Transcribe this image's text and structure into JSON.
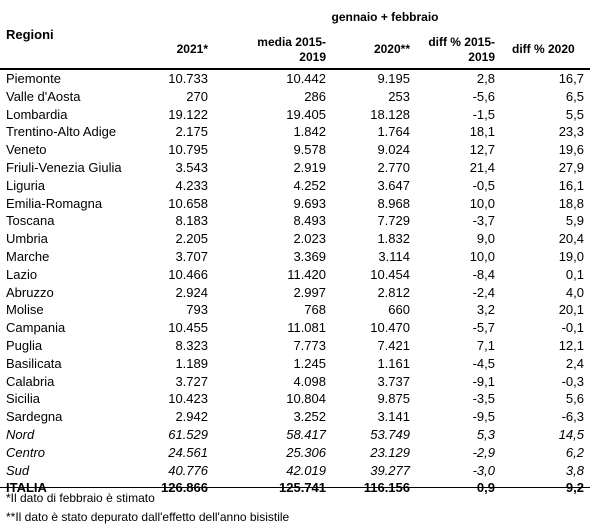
{
  "header": {
    "group_label": "gennaio + febbraio",
    "regioni_label": "Regioni",
    "columns": [
      {
        "line1": "2021*",
        "line2": ""
      },
      {
        "line1": "media 2015-",
        "line2": "2019"
      },
      {
        "line1": "2020**",
        "line2": ""
      },
      {
        "line1": "diff % 2015-",
        "line2": "2019"
      },
      {
        "line1": "diff % 2020",
        "line2": ""
      }
    ]
  },
  "rows": [
    {
      "name": "Piemonte",
      "v2021": "10.733",
      "media": "10.442",
      "v2020": "9.195",
      "d1519": "2,8",
      "d2020": "16,7"
    },
    {
      "name": "Valle d'Aosta",
      "v2021": "270",
      "media": "286",
      "v2020": "253",
      "d1519": "-5,6",
      "d2020": "6,5"
    },
    {
      "name": "Lombardia",
      "v2021": "19.122",
      "media": "19.405",
      "v2020": "18.128",
      "d1519": "-1,5",
      "d2020": "5,5"
    },
    {
      "name": "Trentino-Alto Adige",
      "v2021": "2.175",
      "media": "1.842",
      "v2020": "1.764",
      "d1519": "18,1",
      "d2020": "23,3"
    },
    {
      "name": "Veneto",
      "v2021": "10.795",
      "media": "9.578",
      "v2020": "9.024",
      "d1519": "12,7",
      "d2020": "19,6"
    },
    {
      "name": "Friuli-Venezia Giulia",
      "v2021": "3.543",
      "media": "2.919",
      "v2020": "2.770",
      "d1519": "21,4",
      "d2020": "27,9"
    },
    {
      "name": "Liguria",
      "v2021": "4.233",
      "media": "4.252",
      "v2020": "3.647",
      "d1519": "-0,5",
      "d2020": "16,1"
    },
    {
      "name": "Emilia-Romagna",
      "v2021": "10.658",
      "media": "9.693",
      "v2020": "8.968",
      "d1519": "10,0",
      "d2020": "18,8"
    },
    {
      "name": "Toscana",
      "v2021": "8.183",
      "media": "8.493",
      "v2020": "7.729",
      "d1519": "-3,7",
      "d2020": "5,9"
    },
    {
      "name": "Umbria",
      "v2021": "2.205",
      "media": "2.023",
      "v2020": "1.832",
      "d1519": "9,0",
      "d2020": "20,4"
    },
    {
      "name": "Marche",
      "v2021": "3.707",
      "media": "3.369",
      "v2020": "3.114",
      "d1519": "10,0",
      "d2020": "19,0"
    },
    {
      "name": "Lazio",
      "v2021": "10.466",
      "media": "11.420",
      "v2020": "10.454",
      "d1519": "-8,4",
      "d2020": "0,1"
    },
    {
      "name": "Abruzzo",
      "v2021": "2.924",
      "media": "2.997",
      "v2020": "2.812",
      "d1519": "-2,4",
      "d2020": "4,0"
    },
    {
      "name": "Molise",
      "v2021": "793",
      "media": "768",
      "v2020": "660",
      "d1519": "3,2",
      "d2020": "20,1"
    },
    {
      "name": "Campania",
      "v2021": "10.455",
      "media": "11.081",
      "v2020": "10.470",
      "d1519": "-5,7",
      "d2020": "-0,1"
    },
    {
      "name": "Puglia",
      "v2021": "8.323",
      "media": "7.773",
      "v2020": "7.421",
      "d1519": "7,1",
      "d2020": "12,1"
    },
    {
      "name": "Basilicata",
      "v2021": "1.189",
      "media": "1.245",
      "v2020": "1.161",
      "d1519": "-4,5",
      "d2020": "2,4"
    },
    {
      "name": "Calabria",
      "v2021": "3.727",
      "media": "4.098",
      "v2020": "3.737",
      "d1519": "-9,1",
      "d2020": "-0,3"
    },
    {
      "name": "Sicilia",
      "v2021": "10.423",
      "media": "10.804",
      "v2020": "9.875",
      "d1519": "-3,5",
      "d2020": "5,6"
    },
    {
      "name": "Sardegna",
      "v2021": "2.942",
      "media": "3.252",
      "v2020": "3.141",
      "d1519": "-9,5",
      "d2020": "-6,3"
    },
    {
      "name": "Nord",
      "v2021": "61.529",
      "media": "58.417",
      "v2020": "53.749",
      "d1519": "5,3",
      "d2020": "14,5",
      "style": "italic"
    },
    {
      "name": "Centro",
      "v2021": "24.561",
      "media": "25.306",
      "v2020": "23.129",
      "d1519": "-2,9",
      "d2020": "6,2",
      "style": "italic"
    },
    {
      "name": "Sud",
      "v2021": "40.776",
      "media": "42.019",
      "v2020": "39.277",
      "d1519": "-3,0",
      "d2020": "3,8",
      "style": "italic"
    },
    {
      "name": "ITALIA",
      "v2021": "126.866",
      "media": "125.741",
      "v2020": "116.156",
      "d1519": "0,9",
      "d2020": "9,2",
      "style": "bold"
    }
  ],
  "notes": [
    "*Il dato di febbraio è stimato",
    "**Il dato è stato depurato dall'effetto dell'anno bisistile"
  ]
}
